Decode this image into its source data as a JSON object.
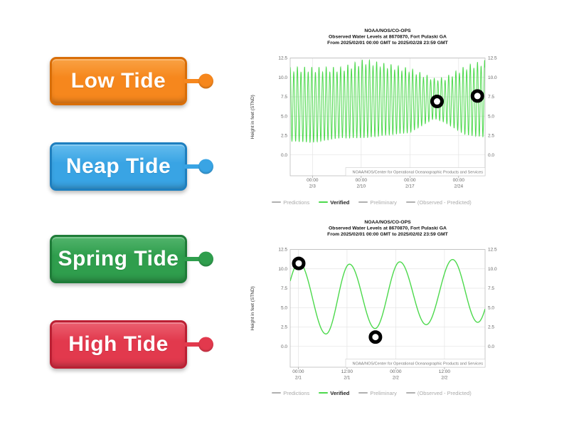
{
  "activity": {
    "labels": [
      {
        "id": "low-tide",
        "text": "Low Tide",
        "color": "#F6871D",
        "color_light": "#F9A244",
        "color_dark": "#D96E08"
      },
      {
        "id": "neap-tide",
        "text": "Neap Tide",
        "color": "#39A4E4",
        "color_light": "#64BCEE",
        "color_dark": "#1E7FBF"
      },
      {
        "id": "spring-tide",
        "text": "Spring Tide",
        "color": "#2F9E4D",
        "color_light": "#52B46C",
        "color_dark": "#1E7C38"
      },
      {
        "id": "high-tide",
        "text": "High Tide",
        "color": "#E2394D",
        "color_light": "#EB6070",
        "color_dark": "#BB1F33"
      }
    ],
    "marker_color": "#000000",
    "marker_fill": "#ffffff"
  },
  "chart_data": [
    {
      "type": "line",
      "title_lines": [
        "NOAA/NOS/CO-OPS",
        "Observed Water Levels at 8670870, Fort Pulaski GA",
        "From 2025/02/01 00:00 GMT to 2025/02/28 23:59 GMT"
      ],
      "ylabel": "Height in feet (STND)",
      "ytick_values": [
        0,
        2.5,
        5,
        7.5,
        10,
        12.5
      ],
      "ytick_labels": [
        "0.0",
        "2.5",
        "5.0",
        "7.5",
        "10.0",
        "12.5"
      ],
      "ylim": [
        -2.7,
        12.5
      ],
      "x_domain_days": [
        -1.2,
        26.8
      ],
      "xticks": [
        {
          "pos_day": 2,
          "time": "00:00",
          "date": "2/3"
        },
        {
          "pos_day": 9,
          "time": "00:00",
          "date": "2/10"
        },
        {
          "pos_day": 16,
          "time": "00:00",
          "date": "2/17"
        },
        {
          "pos_day": 23,
          "time": "00:00",
          "date": "2/24"
        }
      ],
      "series": [
        {
          "name": "Verified",
          "color": "#4cd94c",
          "model": {
            "period_hours": 12.42,
            "phase_high_day": -1.2,
            "inequality": 0.07,
            "inequality_period_days": 1.035,
            "envelope": [
              {
                "day": -1.2,
                "amplitude": 4.6,
                "mean": 6.4
              },
              {
                "day": 2,
                "amplitude": 4.7,
                "mean": 6.3
              },
              {
                "day": 6,
                "amplitude": 4.4,
                "mean": 6.6
              },
              {
                "day": 9.5,
                "amplitude": 4.9,
                "mean": 7.1
              },
              {
                "day": 13,
                "amplitude": 4.4,
                "mean": 7.0
              },
              {
                "day": 16,
                "amplitude": 4.0,
                "mean": 6.9
              },
              {
                "day": 19.5,
                "amplitude": 2.5,
                "mean": 7.2
              },
              {
                "day": 21,
                "amplitude": 2.8,
                "mean": 7.0
              },
              {
                "day": 24,
                "amplitude": 4.3,
                "mean": 6.9
              },
              {
                "day": 26.8,
                "amplitude": 4.8,
                "mean": 7.1
              }
            ]
          }
        }
      ],
      "markers": [
        {
          "day": 19.9,
          "ft": 6.9
        },
        {
          "day": 25.7,
          "ft": 7.6
        }
      ],
      "watermark": "NOAA/NOS/Center for Operational Oceanographic Products and Services",
      "legend": [
        {
          "label": "Predictions",
          "line": "#b0b0b0",
          "bold": false
        },
        {
          "label": "Verified",
          "line": "#4cd94c",
          "bold": true
        },
        {
          "label": "Preliminary",
          "line": "#b0b0b0",
          "bold": false
        },
        {
          "label": "(Observed - Predicted)",
          "line": "#b0b0b0",
          "bold": false
        }
      ]
    },
    {
      "type": "line",
      "title_lines": [
        "NOAA/NOS/CO-OPS",
        "Observed Water Levels at 8670870, Fort Pulaski GA",
        "From 2025/02/01 00:00 GMT to 2025/02/02 23:59 GMT"
      ],
      "ylabel": "Height in feet (STND)",
      "ytick_values": [
        0,
        2.5,
        5,
        7.5,
        10,
        12.5
      ],
      "ytick_labels": [
        "0.0",
        "2.5",
        "5.0",
        "7.5",
        "10.0",
        "12.5"
      ],
      "ylim": [
        -2.7,
        12.5
      ],
      "x_domain_hours": [
        -2,
        46
      ],
      "xticks": [
        {
          "pos_hour": 0,
          "time": "00:00",
          "date": "2/1"
        },
        {
          "pos_hour": 12,
          "time": "12:00",
          "date": "2/1"
        },
        {
          "pos_hour": 24,
          "time": "00:00",
          "date": "2/2"
        },
        {
          "pos_hour": 36,
          "time": "12:00",
          "date": "2/2"
        }
      ],
      "series": [
        {
          "name": "Verified",
          "color": "#4cd94c",
          "extremes": [
            {
              "hour": -6.2,
              "ft": 1.8
            },
            {
              "hour": 0.2,
              "ft": 10.8
            },
            {
              "hour": 6.8,
              "ft": 1.6
            },
            {
              "hour": 12.6,
              "ft": 10.6
            },
            {
              "hour": 18.9,
              "ft": 2.3
            },
            {
              "hour": 25.0,
              "ft": 10.9
            },
            {
              "hour": 31.5,
              "ft": 2.8
            },
            {
              "hour": 38.0,
              "ft": 11.2
            },
            {
              "hour": 44.2,
              "ft": 3.1
            },
            {
              "hour": 50.0,
              "ft": 11.0
            }
          ]
        }
      ],
      "markers": [
        {
          "hour": 0.1,
          "ft": 10.7
        },
        {
          "hour": 19.0,
          "ft": 1.2
        }
      ],
      "watermark": "NOAA/NOS/Center for Operational Oceanographic Products and Services",
      "legend": [
        {
          "label": "Predictions",
          "line": "#b0b0b0",
          "bold": false
        },
        {
          "label": "Verified",
          "line": "#4cd94c",
          "bold": true
        },
        {
          "label": "Preliminary",
          "line": "#b0b0b0",
          "bold": false
        },
        {
          "label": "(Observed - Predicted)",
          "line": "#b0b0b0",
          "bold": false
        }
      ]
    }
  ]
}
